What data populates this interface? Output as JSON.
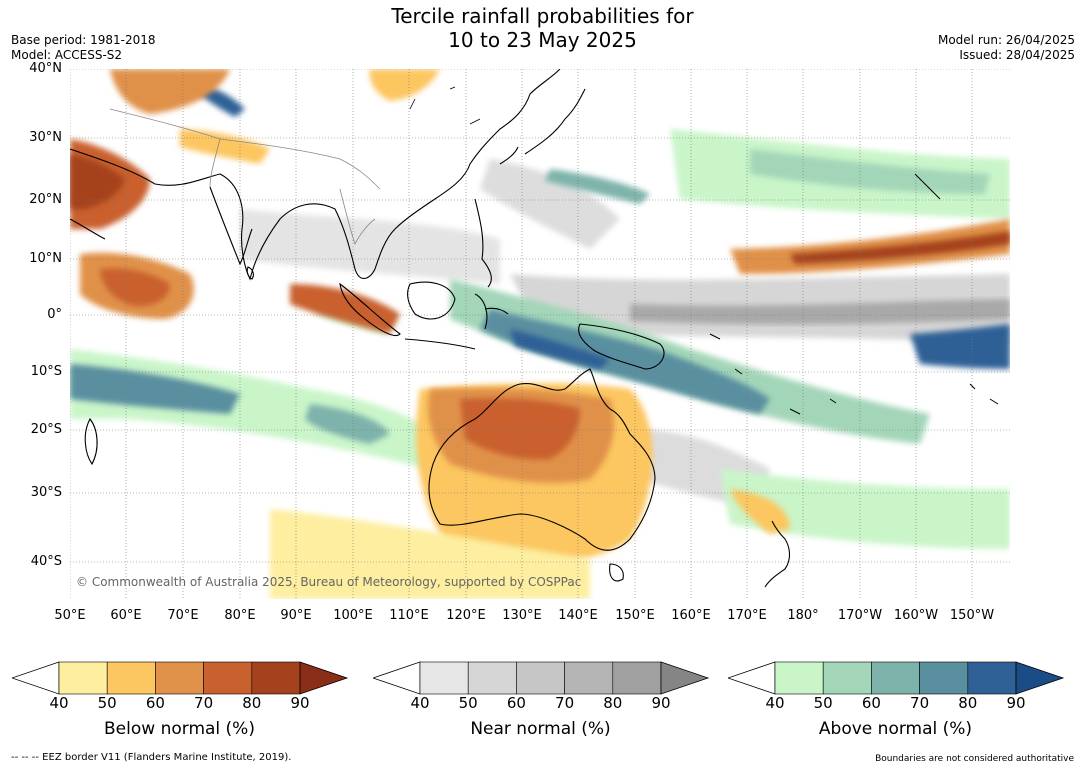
{
  "title_line1": "Tercile rainfall probabilities for",
  "title_line2": "10 to 23 May 2025",
  "base_period": "Base period: 1981-2018",
  "model": "Model: ACCESS-S2",
  "model_run": "Model run: 26/04/2025",
  "issued": "Issued: 28/04/2025",
  "lat_labels": [
    "40°N",
    "30°N",
    "20°N",
    "10°N",
    "0°",
    "10°S",
    "20°S",
    "30°S",
    "40°S"
  ],
  "lon_labels": [
    "50°E",
    "60°E",
    "70°E",
    "80°E",
    "90°E",
    "100°E",
    "110°E",
    "120°E",
    "130°E",
    "140°E",
    "150°E",
    "160°E",
    "170°E",
    "180°",
    "170°W",
    "160°W",
    "150°W"
  ],
  "copyright": "© Commonwealth of Australia 2025, Bureau of Meteorology, supported by COSPPac",
  "colorbars": [
    {
      "label": "Below normal (%)",
      "ticks": [
        "40",
        "50",
        "60",
        "70",
        "80",
        "90"
      ],
      "colors": [
        "#fdeea0",
        "#fcc660",
        "#e0914a",
        "#c9612e",
        "#a5421e",
        "#8a2e17"
      ]
    },
    {
      "label": "Near normal (%)",
      "ticks": [
        "40",
        "50",
        "60",
        "70",
        "80",
        "90"
      ],
      "colors": [
        "#e6e6e6",
        "#d6d6d6",
        "#c6c6c6",
        "#b4b4b4",
        "#a0a0a0",
        "#858585"
      ]
    },
    {
      "label": "Above normal (%)",
      "ticks": [
        "40",
        "50",
        "60",
        "70",
        "80",
        "90"
      ],
      "colors": [
        "#c9f5c9",
        "#a3d6b8",
        "#7eb3ab",
        "#5a8fa0",
        "#2f6196",
        "#1a4c85"
      ]
    }
  ],
  "footer_left": "--  --  -- EEZ border V11 (Flanders Marine Institute, 2019).",
  "footer_right": "Boundaries are not considered authoritative"
}
